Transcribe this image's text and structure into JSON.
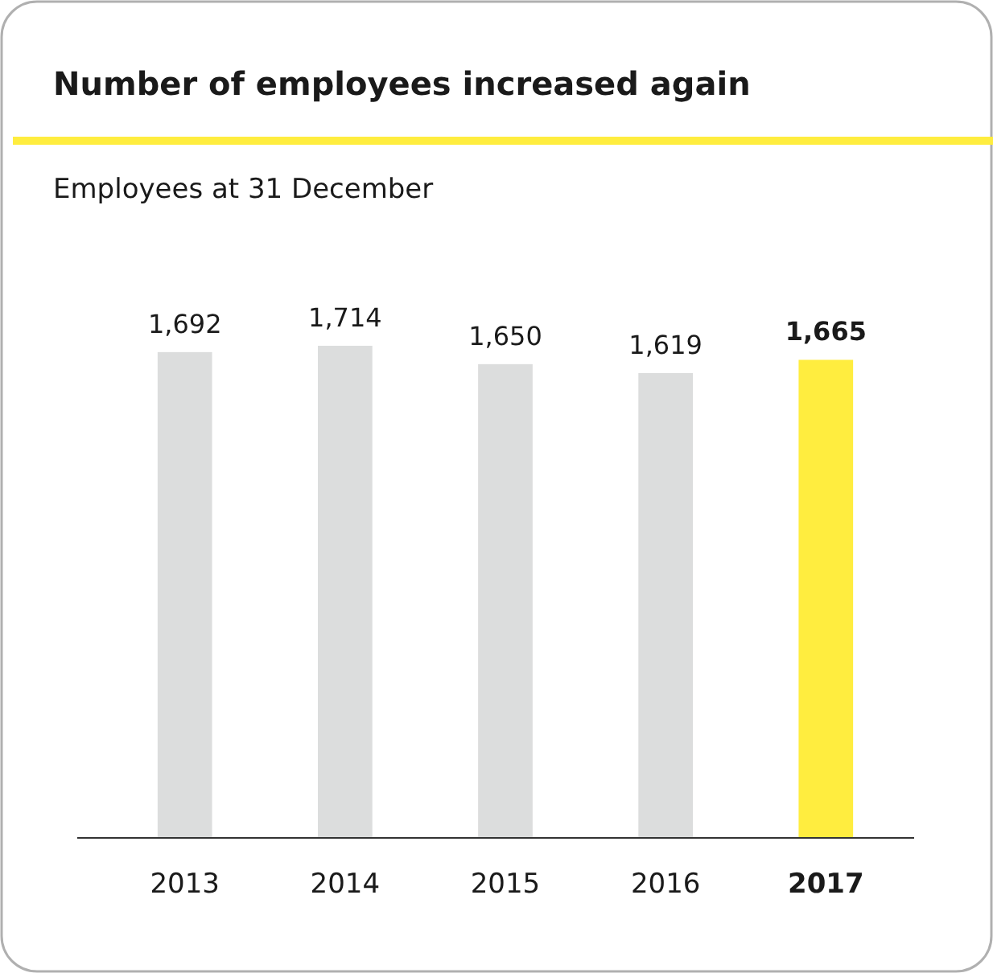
{
  "chart_data": {
    "type": "bar",
    "title": "Number of employees increased again",
    "subtitle": "Employees at 31 December",
    "categories": [
      "2013",
      "2014",
      "2015",
      "2016",
      "2017"
    ],
    "values": [
      1692,
      1714,
      1650,
      1619,
      1665
    ],
    "value_labels": [
      "1,692",
      "1,714",
      "1,650",
      "1,619",
      "1,665"
    ],
    "colors": [
      "#dcdddd",
      "#dcdddd",
      "#dcdddd",
      "#dcdddd",
      "#ffed3f"
    ]
  }
}
